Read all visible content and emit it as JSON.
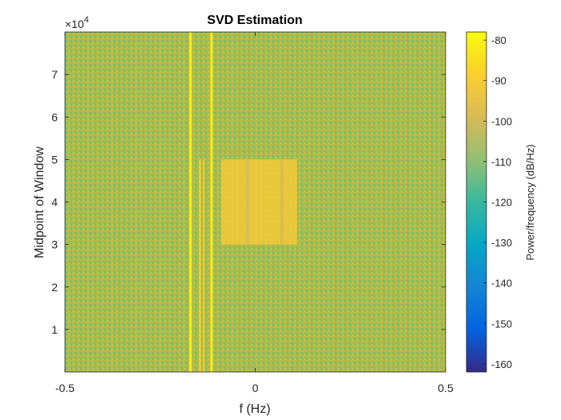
{
  "chart_data": {
    "type": "heatmap",
    "title": "SVD Estimation",
    "xlabel": "f (Hz)",
    "ylabel": "Midpoint of Window",
    "colorbar_label": "Power/frequency (dB/Hz)",
    "xlim": [
      -0.5,
      0.5
    ],
    "ylim": [
      0,
      80000
    ],
    "x_ticks": [
      -0.5,
      0,
      0.5
    ],
    "x_tick_labels": [
      "-0.5",
      "0",
      "0.5"
    ],
    "y_ticks": [
      10000,
      20000,
      30000,
      40000,
      50000,
      60000,
      70000
    ],
    "y_tick_labels": [
      "1",
      "2",
      "3",
      "4",
      "5",
      "6",
      "7"
    ],
    "y_exponent_base": "×10",
    "y_exponent_power": "4",
    "clim": [
      -162,
      -78
    ],
    "colorbar_ticks": [
      -80,
      -90,
      -100,
      -110,
      -120,
      -130,
      -140,
      -150,
      -160
    ],
    "colorbar_tick_labels": [
      "-80",
      "-90",
      "-100",
      "-110",
      "-120",
      "-130",
      "-140",
      "-150",
      "-160"
    ],
    "colormap": "parula",
    "background_level_db": -100,
    "lines": [
      {
        "f": -0.17,
        "y_range": [
          0,
          80000
        ],
        "level_db": -80
      },
      {
        "f": -0.145,
        "y_range": [
          0,
          50000
        ],
        "level_db": -86
      },
      {
        "f": -0.135,
        "y_range": [
          0,
          50000
        ],
        "level_db": -90
      },
      {
        "f": -0.115,
        "y_range": [
          0,
          80000
        ],
        "level_db": -82
      }
    ],
    "band": {
      "f_range": [
        -0.09,
        0.11
      ],
      "y_range": [
        30000,
        50000
      ],
      "level_db": -91
    },
    "band_notches": [
      -0.02,
      0.07
    ]
  }
}
